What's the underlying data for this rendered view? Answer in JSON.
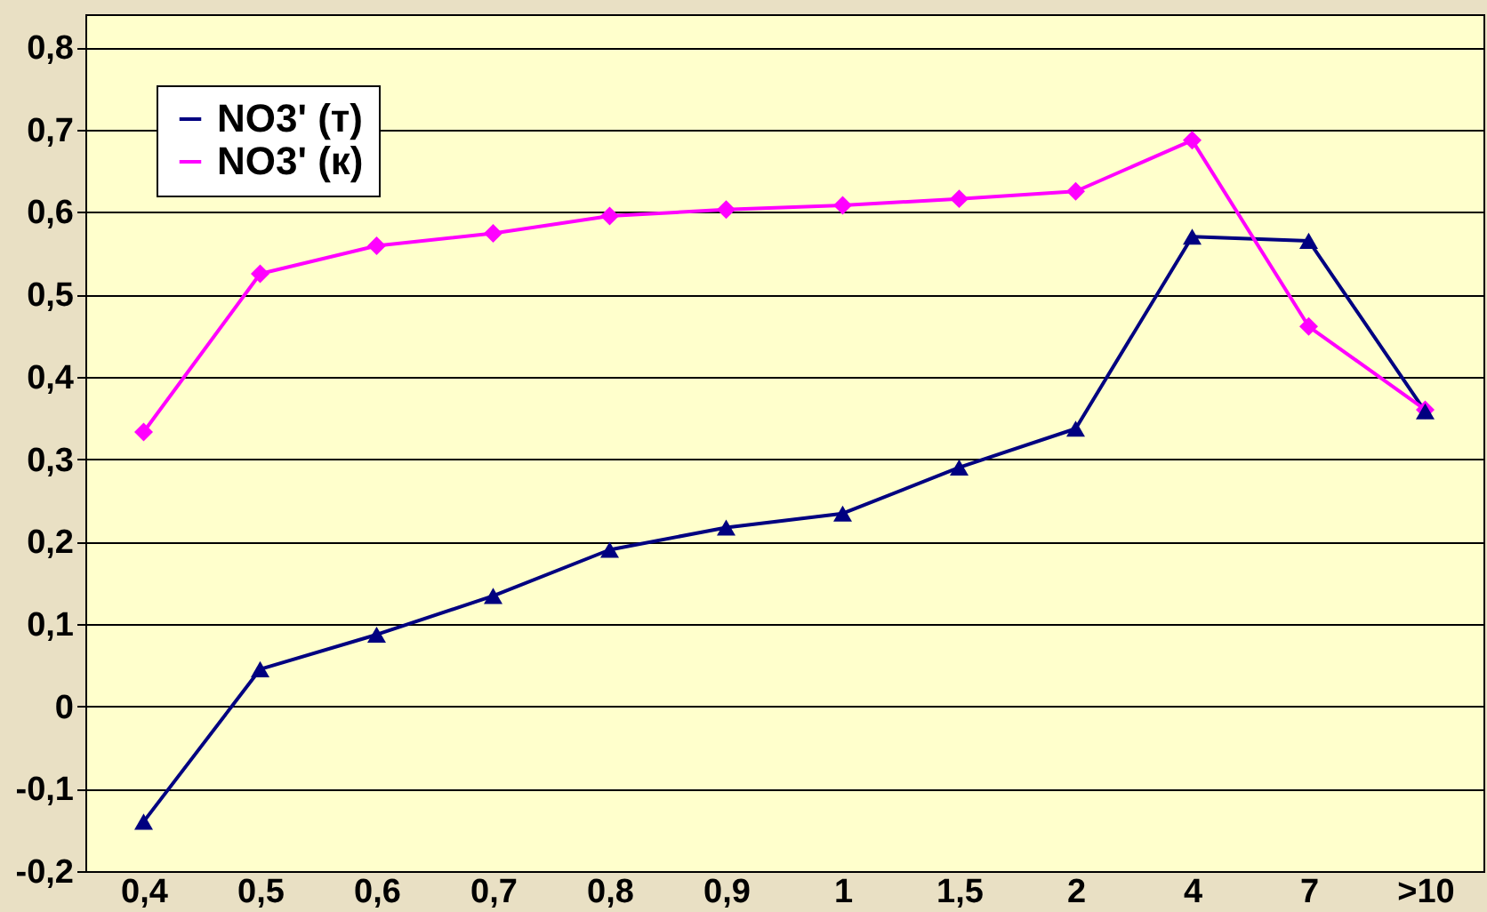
{
  "chart_data": {
    "type": "line",
    "categories": [
      "0,4",
      "0,5",
      "0,6",
      "0,7",
      "0,8",
      "0,9",
      "1",
      "1,5",
      "2",
      "4",
      "7",
      ">10"
    ],
    "series": [
      {
        "name": "NO3' (т)",
        "color": "#000080",
        "marker": "triangle",
        "values": [
          -0.14,
          0.045,
          0.087,
          0.134,
          0.19,
          0.217,
          0.234,
          0.29,
          0.337,
          0.57,
          0.565,
          0.358
        ]
      },
      {
        "name": "NO3' (к)",
        "color": "#ff00ff",
        "marker": "diamond",
        "values": [
          0.333,
          0.525,
          0.559,
          0.574,
          0.595,
          0.603,
          0.608,
          0.616,
          0.625,
          0.687,
          0.461,
          0.36
        ]
      }
    ],
    "ylim": [
      -0.2,
      0.84
    ],
    "yticks": [
      {
        "value": -0.2,
        "label": "-0,2"
      },
      {
        "value": -0.1,
        "label": "-0,1"
      },
      {
        "value": 0,
        "label": "0"
      },
      {
        "value": 0.1,
        "label": "0,1"
      },
      {
        "value": 0.2,
        "label": "0,2"
      },
      {
        "value": 0.3,
        "label": "0,3"
      },
      {
        "value": 0.4,
        "label": "0,4"
      },
      {
        "value": 0.5,
        "label": "0,5"
      },
      {
        "value": 0.6,
        "label": "0,6"
      },
      {
        "value": 0.7,
        "label": "0,7"
      },
      {
        "value": 0.8,
        "label": "0,8"
      }
    ],
    "grid": "y",
    "legend": "top left",
    "line_style": "solid"
  }
}
